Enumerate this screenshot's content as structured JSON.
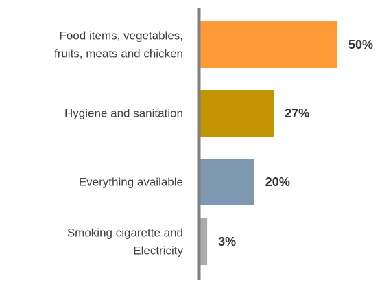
{
  "chart_data": {
    "type": "bar",
    "orientation": "horizontal",
    "title": "",
    "xlabel": "",
    "ylabel": "",
    "xlim": [
      0,
      50
    ],
    "grid": false,
    "legend": "none",
    "categories": [
      [
        "Food items, vegetables,",
        "fruits, meats and chicken"
      ],
      [
        "Hygiene and sanitation"
      ],
      [
        "Everything available"
      ],
      [
        "Smoking cigarette and",
        "Electricity"
      ]
    ],
    "values": [
      50,
      27,
      20,
      3
    ],
    "value_labels": [
      "50%",
      "27%",
      "20%",
      "3%"
    ],
    "colors": [
      "#FF9B37",
      "#C39500",
      "#7F98B2",
      "#ABABAB"
    ],
    "axis_color": "#7F7F7F"
  }
}
